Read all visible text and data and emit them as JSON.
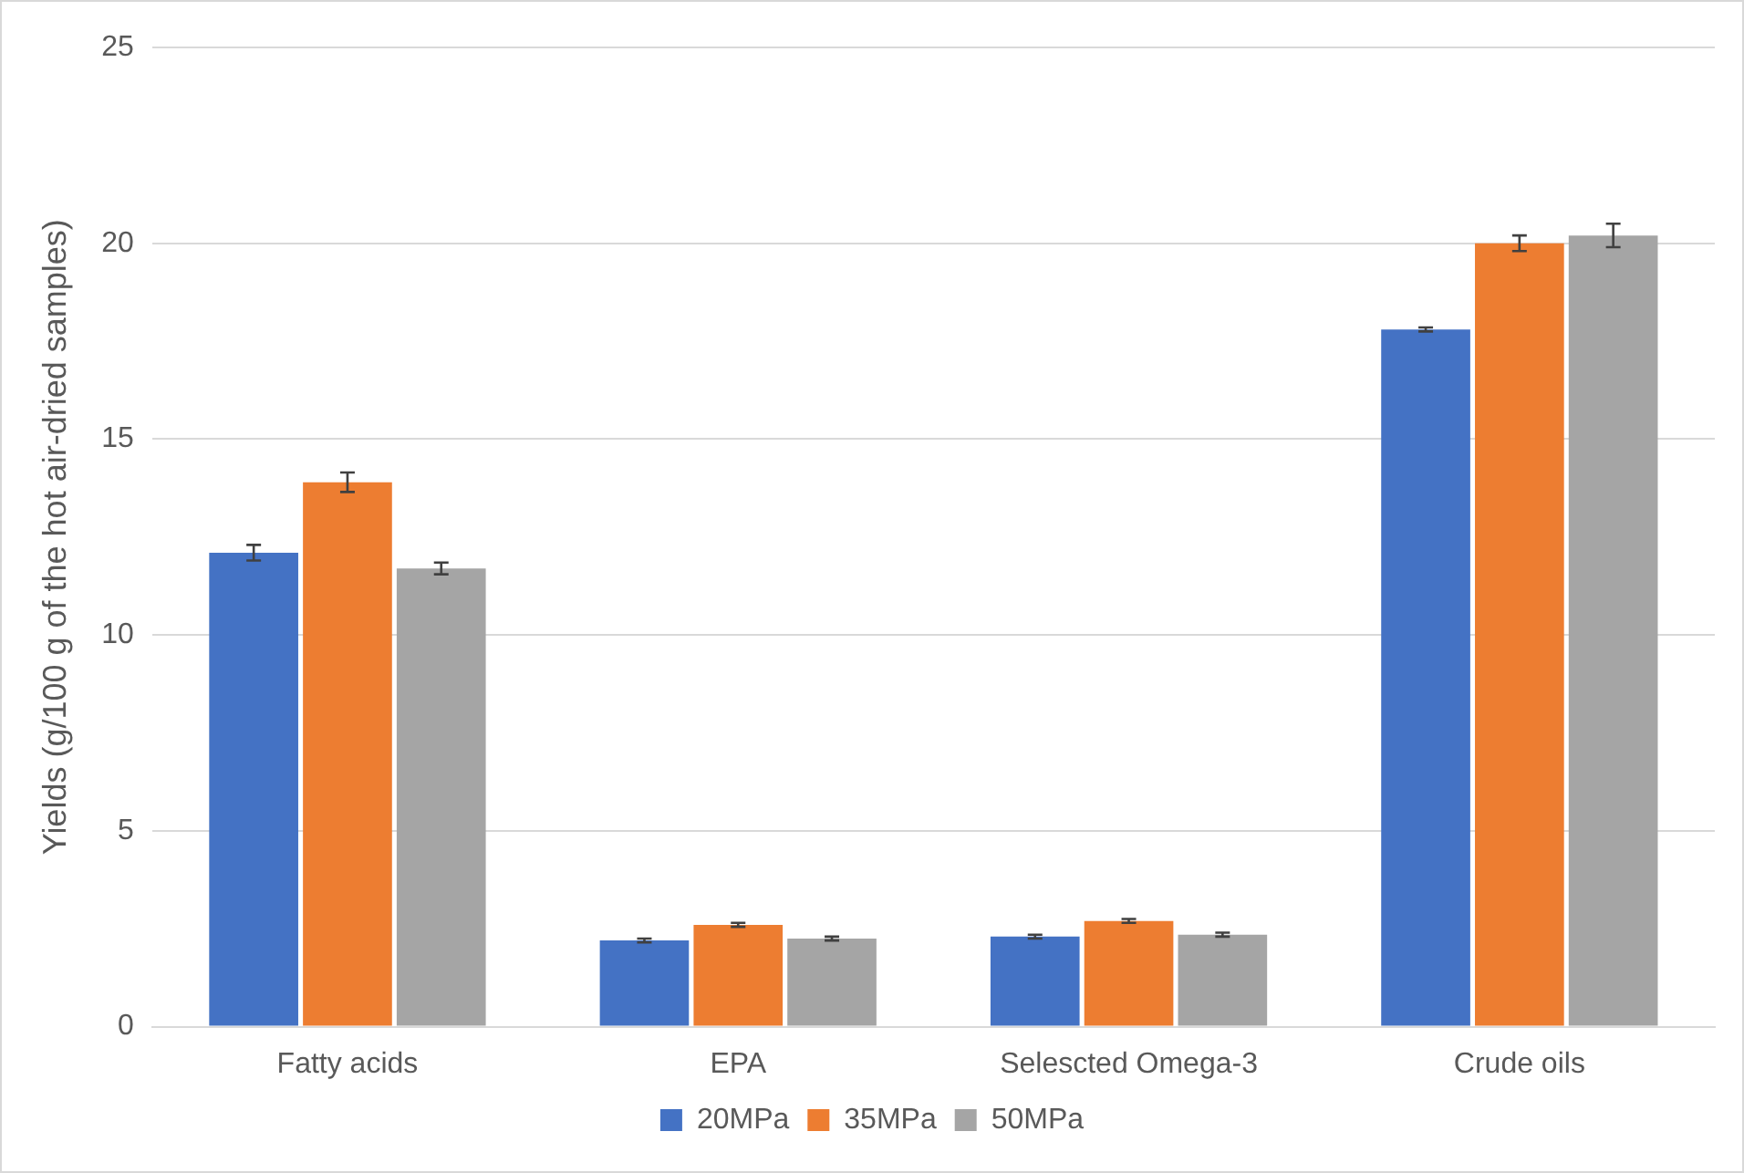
{
  "chart_data": {
    "type": "bar",
    "ylabel": "Yields (g/100 g of the hot air-dried samples)",
    "categories": [
      "Fatty acids",
      "EPA",
      "Selescted Omega-3",
      "Crude oils"
    ],
    "series": [
      {
        "name": "20MPa",
        "color": "#4472c4",
        "values": [
          12.1,
          2.2,
          2.3,
          17.8
        ],
        "errors": [
          0.2,
          0.05,
          0.05,
          0.05
        ]
      },
      {
        "name": "35MPa",
        "color": "#ed7d31",
        "values": [
          13.9,
          2.6,
          2.7,
          20.0
        ],
        "errors": [
          0.25,
          0.05,
          0.05,
          0.2
        ]
      },
      {
        "name": "50MPa",
        "color": "#a5a5a5",
        "values": [
          11.7,
          2.25,
          2.35,
          20.2
        ],
        "errors": [
          0.15,
          0.05,
          0.05,
          0.3
        ]
      }
    ],
    "ylim": [
      0,
      25
    ],
    "yticks": [
      0,
      5,
      10,
      15,
      20,
      25
    ],
    "grid": "y",
    "legend": "bottom"
  }
}
